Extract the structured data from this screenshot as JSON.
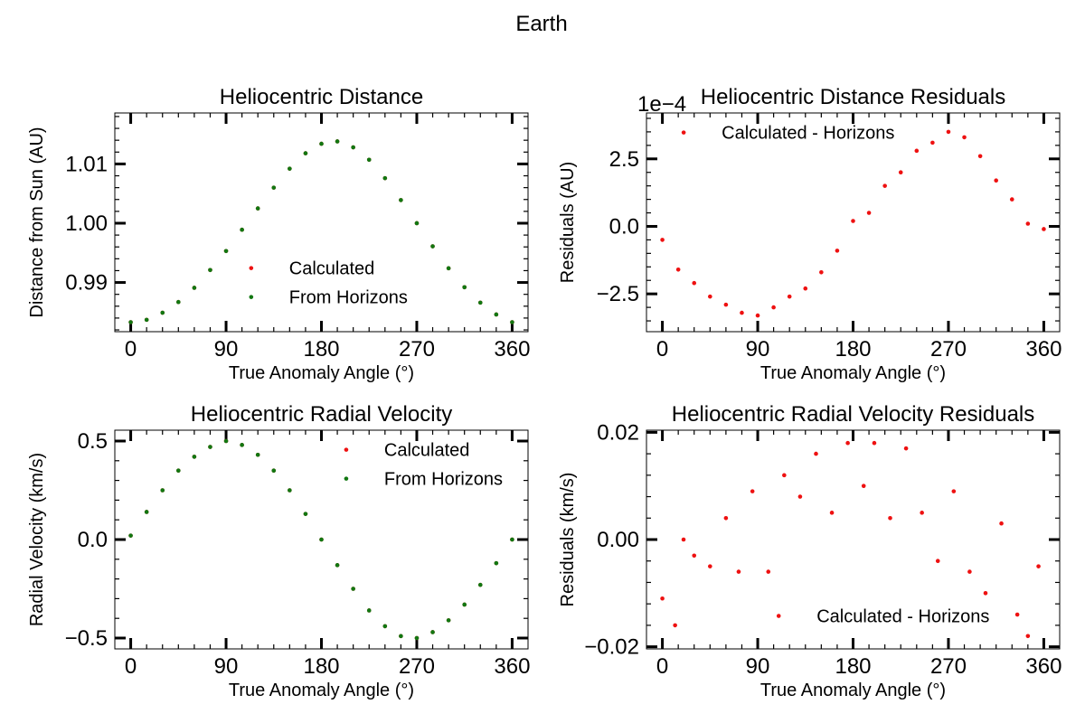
{
  "figure": {
    "suptitle": "Earth",
    "colors": {
      "calculated": "#ee1111",
      "horizons": "#117711",
      "axes": "#000000"
    }
  },
  "chart_data": [
    {
      "id": "distance",
      "type": "scatter",
      "title": "Heliocentric Distance",
      "xlabel": "True Anomaly Angle (°)",
      "ylabel": "Distance from Sun (AU)",
      "xlim": [
        -15,
        375
      ],
      "ylim": [
        0.9817,
        1.0186
      ],
      "xticks": [
        0,
        90,
        180,
        270,
        360
      ],
      "xtick_labels": [
        "0",
        "90",
        "180",
        "270",
        "360"
      ],
      "yticks": [
        0.99,
        1.0,
        1.01
      ],
      "ytick_labels": [
        "0.99",
        "1.00",
        "1.01"
      ],
      "legend": {
        "placement": "lower-center",
        "entries": [
          "Calculated",
          "From Horizons"
        ]
      },
      "series": [
        {
          "name": "Calculated",
          "color": "#ee1111",
          "x": [
            0,
            15,
            30,
            45,
            60,
            75,
            90,
            105,
            120,
            135,
            150,
            165,
            180,
            195,
            210,
            225,
            240,
            255,
            270,
            285,
            300,
            315,
            330,
            345,
            360
          ],
          "y": [
            0.9833,
            0.9837,
            0.9849,
            0.9867,
            0.9891,
            0.9921,
            0.9953,
            0.9989,
            1.0025,
            1.006,
            1.0092,
            1.0118,
            1.0134,
            1.0138,
            1.0128,
            1.0107,
            1.0076,
            1.0039,
            1.0,
            0.9961,
            0.9924,
            0.9892,
            0.9866,
            0.9846,
            0.9833
          ]
        },
        {
          "name": "From Horizons",
          "color": "#117711",
          "x": [
            0,
            15,
            30,
            45,
            60,
            75,
            90,
            105,
            120,
            135,
            150,
            165,
            180,
            195,
            210,
            225,
            240,
            255,
            270,
            285,
            300,
            315,
            330,
            345,
            360
          ],
          "y": [
            0.9833,
            0.9837,
            0.9849,
            0.9867,
            0.9891,
            0.9921,
            0.9953,
            0.9989,
            1.0025,
            1.006,
            1.0092,
            1.0118,
            1.0134,
            1.0138,
            1.0128,
            1.0107,
            1.0076,
            1.0039,
            1.0,
            0.9961,
            0.9924,
            0.9892,
            0.9866,
            0.9846,
            0.9833
          ]
        }
      ]
    },
    {
      "id": "distance-residuals",
      "type": "scatter",
      "title": "Heliocentric Distance Residuals",
      "xlabel": "True Anomaly Angle (°)",
      "ylabel": "Residuals (AU)",
      "offset_text": "1e−4",
      "xlim": [
        -15,
        375
      ],
      "ylim": [
        -3.9,
        4.2
      ],
      "xticks": [
        0,
        90,
        180,
        270,
        360
      ],
      "xtick_labels": [
        "0",
        "90",
        "180",
        "270",
        "360"
      ],
      "yticks": [
        -2.5,
        0.0,
        2.5
      ],
      "ytick_labels": [
        "−2.5",
        "0.0",
        "2.5"
      ],
      "legend": {
        "placement": "top-left",
        "entries": [
          "Calculated - Horizons"
        ]
      },
      "series": [
        {
          "name": "Calculated - Horizons",
          "color": "#ee1111",
          "x": [
            0,
            15,
            30,
            45,
            60,
            75,
            90,
            105,
            120,
            135,
            150,
            165,
            180,
            195,
            210,
            225,
            240,
            255,
            270,
            285,
            300,
            315,
            330,
            345,
            360
          ],
          "y": [
            -0.5,
            -1.6,
            -2.1,
            -2.6,
            -2.9,
            -3.2,
            -3.3,
            -3.0,
            -2.6,
            -2.3,
            -1.7,
            -0.9,
            0.2,
            0.5,
            1.5,
            2.0,
            2.8,
            3.1,
            3.5,
            3.3,
            2.6,
            1.7,
            1.0,
            0.1,
            -0.1
          ]
        }
      ]
    },
    {
      "id": "radial-velocity",
      "type": "scatter",
      "title": "Heliocentric Radial Velocity",
      "xlabel": "True Anomaly Angle (°)",
      "ylabel": "Radial Velocity (km/s)",
      "xlim": [
        -15,
        375
      ],
      "ylim": [
        -0.555,
        0.555
      ],
      "xticks": [
        0,
        90,
        180,
        270,
        360
      ],
      "xtick_labels": [
        "0",
        "90",
        "180",
        "270",
        "360"
      ],
      "yticks": [
        -0.5,
        0.0,
        0.5
      ],
      "ytick_labels": [
        "−0.5",
        "0.0",
        "0.5"
      ],
      "legend": {
        "placement": "top-right",
        "entries": [
          "Calculated",
          "From Horizons"
        ]
      },
      "series": [
        {
          "name": "Calculated",
          "color": "#ee1111",
          "x": [
            0,
            15,
            30,
            45,
            60,
            75,
            90,
            105,
            120,
            135,
            150,
            165,
            180,
            195,
            210,
            225,
            240,
            255,
            270,
            285,
            300,
            315,
            330,
            345,
            360
          ],
          "y": [
            0.02,
            0.14,
            0.25,
            0.35,
            0.42,
            0.47,
            0.5,
            0.48,
            0.43,
            0.35,
            0.25,
            0.13,
            0.0,
            -0.13,
            -0.25,
            -0.36,
            -0.44,
            -0.49,
            -0.5,
            -0.47,
            -0.41,
            -0.33,
            -0.23,
            -0.12,
            0.0
          ]
        },
        {
          "name": "From Horizons",
          "color": "#117711",
          "x": [
            0,
            15,
            30,
            45,
            60,
            75,
            90,
            105,
            120,
            135,
            150,
            165,
            180,
            195,
            210,
            225,
            240,
            255,
            270,
            285,
            300,
            315,
            330,
            345,
            360
          ],
          "y": [
            0.02,
            0.14,
            0.25,
            0.35,
            0.42,
            0.47,
            0.5,
            0.48,
            0.43,
            0.35,
            0.25,
            0.13,
            0.0,
            -0.13,
            -0.25,
            -0.36,
            -0.44,
            -0.49,
            -0.5,
            -0.47,
            -0.41,
            -0.33,
            -0.23,
            -0.12,
            0.0
          ]
        }
      ]
    },
    {
      "id": "radial-velocity-residuals",
      "type": "scatter",
      "title": "Heliocentric Radial Velocity Residuals",
      "xlabel": "True Anomaly Angle (°)",
      "ylabel": "Residuals (km/s)",
      "xlim": [
        -15,
        375
      ],
      "ylim": [
        -0.0204,
        0.0204
      ],
      "xticks": [
        0,
        90,
        180,
        270,
        360
      ],
      "xtick_labels": [
        "0",
        "90",
        "180",
        "270",
        "360"
      ],
      "yticks": [
        -0.02,
        0.0,
        0.02
      ],
      "ytick_labels": [
        "−0.02",
        "0.00",
        "0.02"
      ],
      "legend": {
        "placement": "lower-center",
        "entries": [
          "Calculated - Horizons"
        ]
      },
      "series": [
        {
          "name": "Calculated - Horizons",
          "color": "#ee1111",
          "x": [
            0,
            12,
            20,
            30,
            45,
            60,
            72,
            85,
            100,
            115,
            130,
            145,
            160,
            175,
            190,
            200,
            215,
            230,
            245,
            260,
            275,
            290,
            305,
            320,
            335,
            345,
            355
          ],
          "y": [
            -0.011,
            -0.016,
            0.0,
            -0.003,
            -0.005,
            0.004,
            -0.006,
            0.009,
            -0.006,
            0.012,
            0.008,
            0.016,
            0.005,
            0.018,
            0.01,
            0.018,
            0.004,
            0.017,
            0.005,
            -0.004,
            0.009,
            -0.006,
            -0.01,
            0.003,
            -0.014,
            -0.018,
            -0.005
          ]
        }
      ]
    }
  ]
}
